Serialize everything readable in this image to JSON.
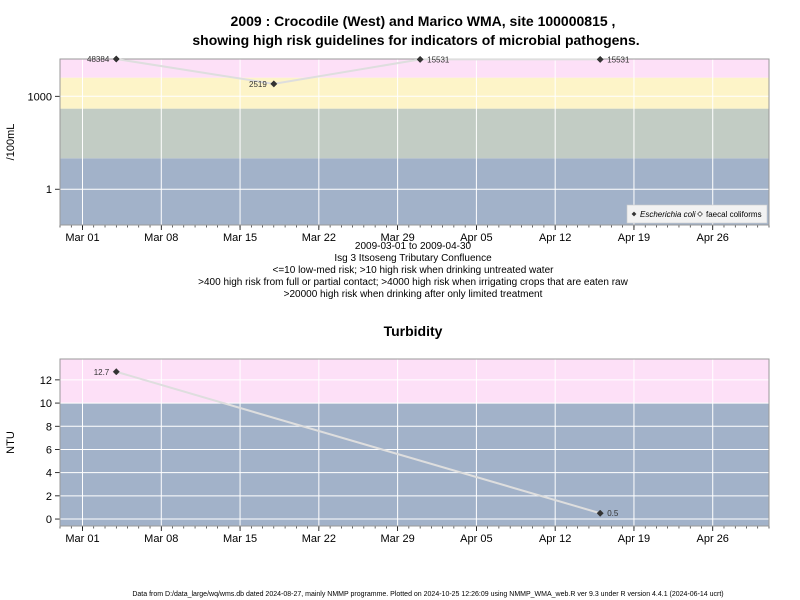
{
  "figure": {
    "title_line1": "2009 : Crocodile (West) and Marico WMA, site 100000815 ,",
    "title_line2": "showing high risk guidelines for indicators of microbial pathogens.",
    "footer": "Data from D:/data_large/wq/wms.db dated 2024-08-27, mainly NMMP programme. Plotted on 2024-10-25 12:26:09 using NMMP_WMA_web.R ver 9.3 under R version 4.4.1 (2024-06-14 ucrt)"
  },
  "chart_data": [
    {
      "type": "line",
      "title": "",
      "ylabel": "/100mL",
      "yscale": "log",
      "xlim": [
        "2009-02-27",
        "2009-05-01"
      ],
      "ylim": [
        0.07,
        16000
      ],
      "x_tick_labels": [
        "Mar 01",
        "Mar 08",
        "Mar 15",
        "Mar 22",
        "Mar 29",
        "Apr 05",
        "Apr 12",
        "Apr 19",
        "Apr 26"
      ],
      "x_ticks": [
        "2009-03-01",
        "2009-03-08",
        "2009-03-15",
        "2009-03-22",
        "2009-03-29",
        "2009-04-05",
        "2009-04-12",
        "2009-04-19",
        "2009-04-26"
      ],
      "y_ticks": [
        1,
        1000
      ],
      "y_tick_labels": [
        "1",
        "1000"
      ],
      "grid": true,
      "risk_bands": [
        {
          "from": 0.07,
          "to": 10,
          "color": "#a2b2c9"
        },
        {
          "from": 10,
          "to": 400,
          "color": "#c2ccc4"
        },
        {
          "from": 400,
          "to": 4000,
          "color": "#fdf4c8"
        },
        {
          "from": 4000,
          "to": 20000,
          "color": "#fde0f7"
        },
        {
          "from": 20000,
          "to": 16000000,
          "color": "#fcb6c6"
        }
      ],
      "series": [
        {
          "name": "Escherichia coli",
          "marker": "filled-diamond",
          "color": "#333333",
          "x": [
            "2009-03-04",
            "2009-03-18",
            "2009-03-31",
            "2009-04-16"
          ],
          "y": [
            48384,
            2519,
            15531,
            15531
          ],
          "labels": [
            "48384",
            "2519",
            "15531",
            "15531"
          ]
        }
      ],
      "legend": {
        "placement": "bottom-right",
        "entries": [
          {
            "name": "Escherichia coli",
            "marker": "filled-diamond"
          },
          {
            "name": "faecal coliforms",
            "marker": "open-diamond"
          }
        ]
      },
      "captions": [
        "2009-03-01 to 2009-04-30",
        "Isg 3 Itsoseng Tributary Confluence",
        "<=10 low-med risk; >10 high risk when drinking untreated water",
        ">400 high risk from full or partial contact; >4000 high risk when irrigating crops that are eaten raw",
        ">20000 high risk when drinking after only limited treatment"
      ]
    },
    {
      "type": "line",
      "title": "Turbidity",
      "ylabel": "NTU",
      "yscale": "linear",
      "xlim": [
        "2009-02-27",
        "2009-05-01"
      ],
      "ylim": [
        -0.6,
        13.8
      ],
      "x_tick_labels": [
        "Mar 01",
        "Mar 08",
        "Mar 15",
        "Mar 22",
        "Mar 29",
        "Apr 05",
        "Apr 12",
        "Apr 19",
        "Apr 26"
      ],
      "x_ticks": [
        "2009-03-01",
        "2009-03-08",
        "2009-03-15",
        "2009-03-22",
        "2009-03-29",
        "2009-04-05",
        "2009-04-12",
        "2009-04-19",
        "2009-04-26"
      ],
      "y_ticks": [
        0,
        2,
        4,
        6,
        8,
        10,
        12
      ],
      "y_tick_labels": [
        "0",
        "2",
        "4",
        "6",
        "8",
        "10",
        "12"
      ],
      "grid": true,
      "risk_bands": [
        {
          "from": -0.6,
          "to": 10,
          "color": "#a2b2c9"
        },
        {
          "from": 10,
          "to": 13.8,
          "color": "#fde0f7"
        }
      ],
      "series": [
        {
          "name": "",
          "marker": "filled-diamond",
          "color": "#333333",
          "x": [
            "2009-03-04",
            "2009-04-16"
          ],
          "y": [
            12.7,
            0.5
          ],
          "labels": [
            "12.7",
            "0.5"
          ]
        }
      ]
    }
  ]
}
